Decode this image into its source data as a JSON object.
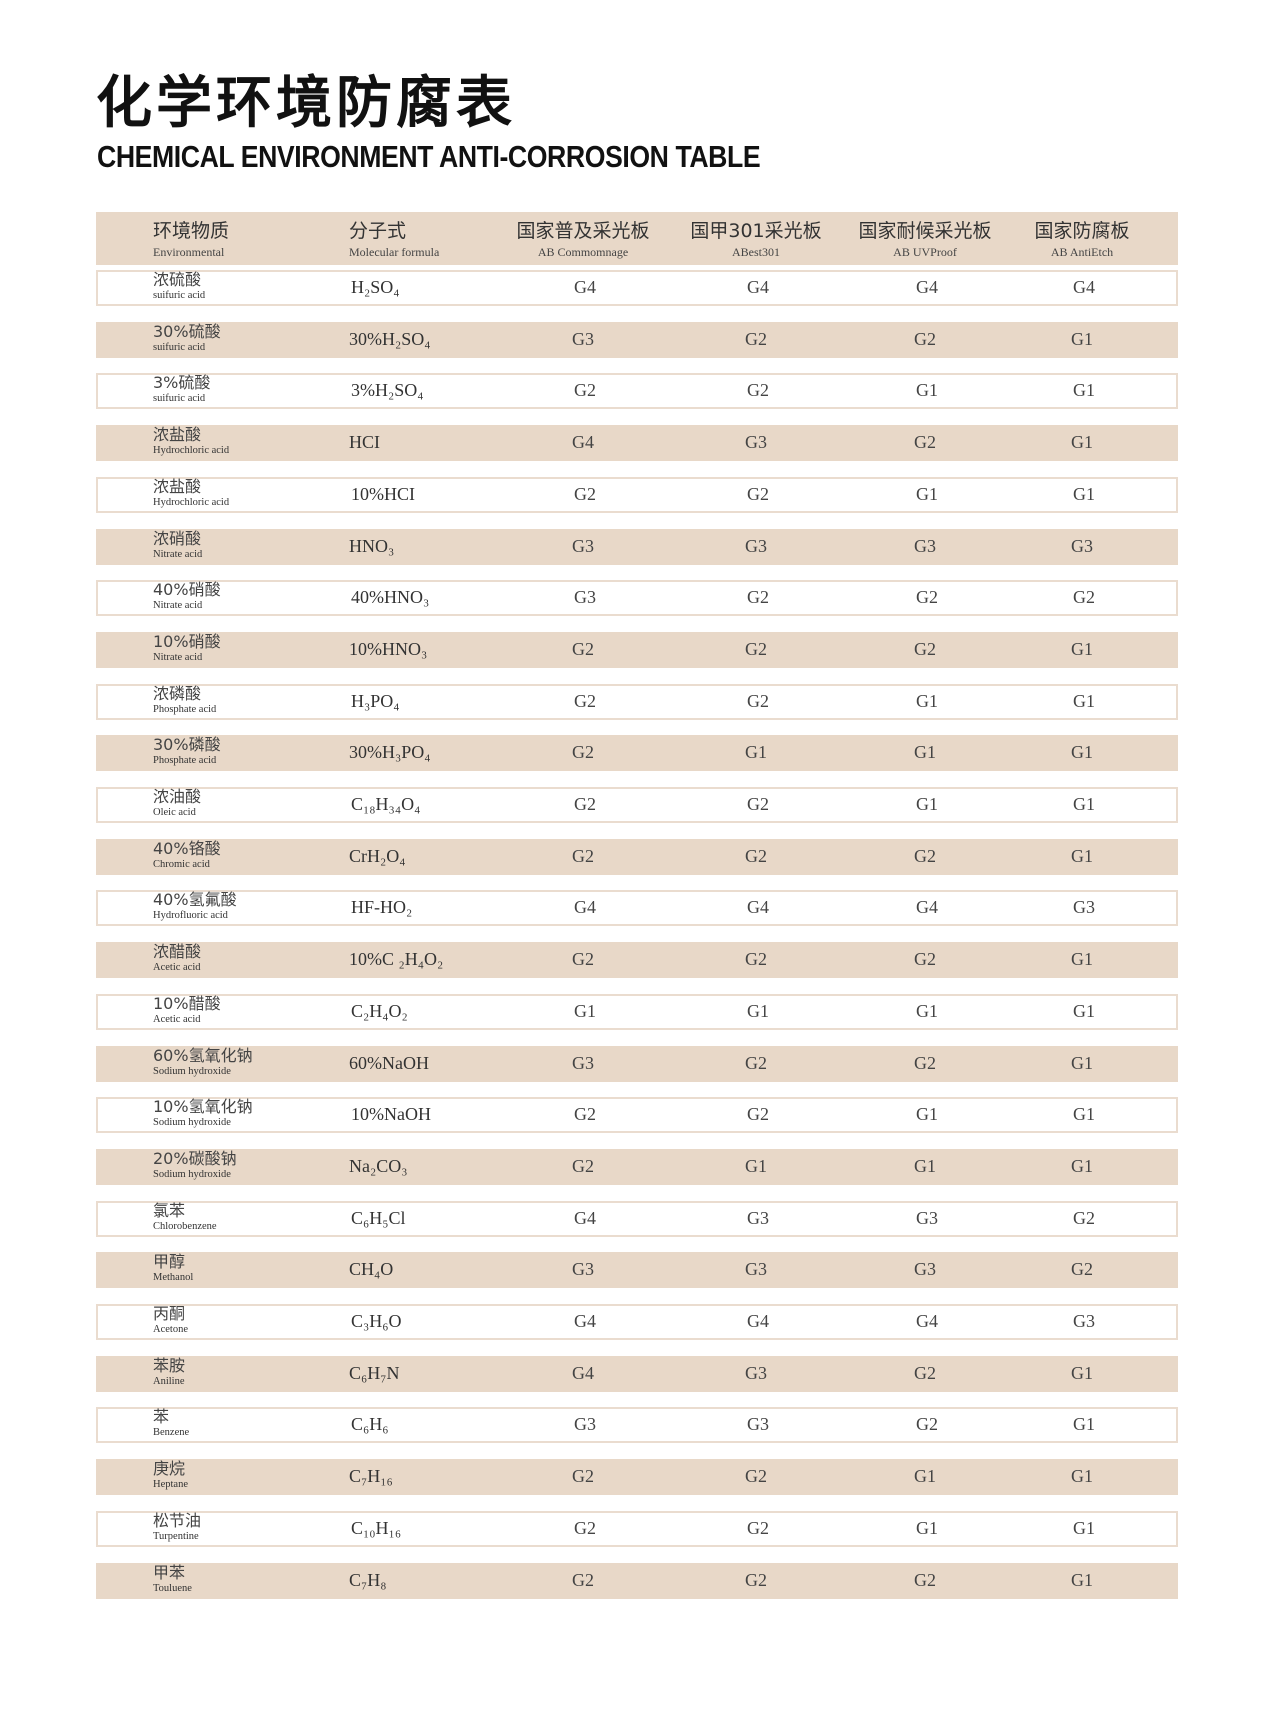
{
  "title": "化学环境防腐表",
  "subtitle": "CHEMICAL ENVIRONMENT ANTI-CORROSION TABLE",
  "colors": {
    "row_fill": "#e8d8c8",
    "row_border": "#eadccf"
  },
  "headers": [
    {
      "cn": "环境物质",
      "en": "Environmental"
    },
    {
      "cn": "分子式",
      "en": "Molecular formula"
    },
    {
      "cn": "国家普及采光板",
      "en": "AB Commomnage"
    },
    {
      "cn": "国甲301采光板",
      "en": "ABest301"
    },
    {
      "cn": "国家耐候采光板",
      "en": "AB UVProof"
    },
    {
      "cn": "国家防腐板",
      "en": "AB AntiEtch"
    }
  ],
  "rows": [
    {
      "cn": "浓硫酸",
      "en": "suifuric acid",
      "formula": "H₂SO₄",
      "v": [
        "G4",
        "G4",
        "G4",
        "G4"
      ]
    },
    {
      "cn": "30%硫酸",
      "en": "suifuric acid",
      "formula": "30%H₂SO₄",
      "v": [
        "G3",
        "G2",
        "G2",
        "G1"
      ]
    },
    {
      "cn": "3%硫酸",
      "en": "suifuric acid",
      "formula": "3%H₂SO₄",
      "v": [
        "G2",
        "G2",
        "G1",
        "G1"
      ]
    },
    {
      "cn": "浓盐酸",
      "en": "Hydrochloric acid",
      "formula": "HCI",
      "v": [
        "G4",
        "G3",
        "G2",
        "G1"
      ]
    },
    {
      "cn": "浓盐酸",
      "en": "Hydrochloric acid",
      "formula": "10%HCI",
      "v": [
        "G2",
        "G2",
        "G1",
        "G1"
      ]
    },
    {
      "cn": "浓硝酸",
      "en": "Nitrate acid",
      "formula": "HNO₃",
      "v": [
        "G3",
        "G3",
        "G3",
        "G3"
      ]
    },
    {
      "cn": "40%硝酸",
      "en": "Nitrate acid",
      "formula": "40%HNO₃",
      "v": [
        "G3",
        "G2",
        "G2",
        "G2"
      ]
    },
    {
      "cn": "10%硝酸",
      "en": "Nitrate acid",
      "formula": "10%HNO₃",
      "v": [
        "G2",
        "G2",
        "G2",
        "G1"
      ]
    },
    {
      "cn": "浓磷酸",
      "en": "Phosphate acid",
      "formula": "H₃PO₄",
      "v": [
        "G2",
        "G2",
        "G1",
        "G1"
      ]
    },
    {
      "cn": "30%磷酸",
      "en": "Phosphate acid",
      "formula": "30%H₃PO₄",
      "v": [
        "G2",
        "G1",
        "G1",
        "G1"
      ]
    },
    {
      "cn": "浓油酸",
      "en": "Oleic acid",
      "formula": "C₁₈H₃₄O₄",
      "v": [
        "G2",
        "G2",
        "G1",
        "G1"
      ]
    },
    {
      "cn": "40%铬酸",
      "en": "Chromic acid",
      "formula": "CrH₂O₄",
      "v": [
        "G2",
        "G2",
        "G2",
        "G1"
      ]
    },
    {
      "cn": "40%氢氟酸",
      "en": "Hydrofluoric acid",
      "formula": "HF-HO₂",
      "v": [
        "G4",
        "G4",
        "G4",
        "G3"
      ]
    },
    {
      "cn": "浓醋酸",
      "en": "Acetic acid",
      "formula": "10%C  ₂H₄O₂",
      "v": [
        "G2",
        "G2",
        "G2",
        "G1"
      ]
    },
    {
      "cn": "10%醋酸",
      "en": "Acetic acid",
      "formula": "C₂H₄O₂",
      "v": [
        "G1",
        "G1",
        "G1",
        "G1"
      ]
    },
    {
      "cn": "60%氢氧化钠",
      "en": "Sodium hydroxide",
      "formula": "60%NaOH",
      "v": [
        "G3",
        "G2",
        "G2",
        "G1"
      ]
    },
    {
      "cn": "10%氢氧化钠",
      "en": "Sodium hydroxide",
      "formula": "10%NaOH",
      "v": [
        "G2",
        "G2",
        "G1",
        "G1"
      ]
    },
    {
      "cn": "20%碳酸钠",
      "en": "Sodium hydroxide",
      "formula": "Na₂CO₃",
      "v": [
        "G2",
        "G1",
        "G1",
        "G1"
      ]
    },
    {
      "cn": "氯苯",
      "en": "Chlorobenzene",
      "formula": "C₆H₅Cl",
      "v": [
        "G4",
        "G3",
        "G3",
        "G2"
      ]
    },
    {
      "cn": "甲醇",
      "en": "Methanol",
      "formula": "CH₄O",
      "v": [
        "G3",
        "G3",
        "G3",
        "G2"
      ]
    },
    {
      "cn": "丙酮",
      "en": "Acetone",
      "formula": "C₃H₆O",
      "v": [
        "G4",
        "G4",
        "G4",
        "G3"
      ]
    },
    {
      "cn": "苯胺",
      "en": "Aniline",
      "formula": "C₆H₇N",
      "v": [
        "G4",
        "G3",
        "G2",
        "G1"
      ]
    },
    {
      "cn": "苯",
      "en": "Benzene",
      "formula": "C₆H₆",
      "v": [
        "G3",
        "G3",
        "G2",
        "G1"
      ]
    },
    {
      "cn": "庚烷",
      "en": "Heptane",
      "formula": "C₇H₁₆",
      "v": [
        "G2",
        "G2",
        "G1",
        "G1"
      ]
    },
    {
      "cn": "松节油",
      "en": "Turpentine",
      "formula": "C₁₀H₁₆",
      "v": [
        "G2",
        "G2",
        "G1",
        "G1"
      ]
    },
    {
      "cn": "甲苯",
      "en": "Touluene",
      "formula": "C₇H₈",
      "v": [
        "G2",
        "G2",
        "G2",
        "G1"
      ]
    }
  ]
}
